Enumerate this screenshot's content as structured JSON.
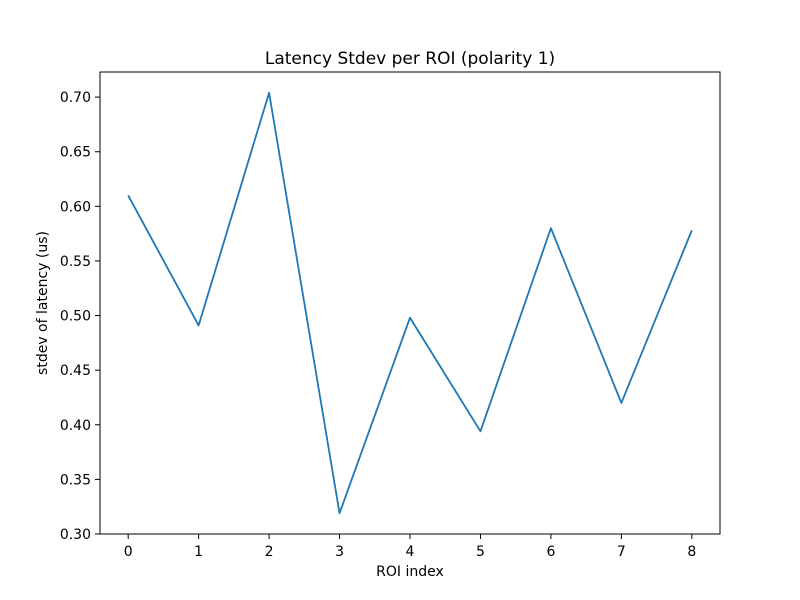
{
  "chart_data": {
    "type": "line",
    "title": "Latency Stdev per ROI (polarity 1)",
    "xlabel": "ROI index",
    "ylabel": "stdev of latency (us)",
    "x": [
      0,
      1,
      2,
      3,
      4,
      5,
      6,
      7,
      8
    ],
    "series": [
      {
        "name": "stdev",
        "values": [
          0.61,
          0.491,
          0.704,
          0.319,
          0.498,
          0.394,
          0.58,
          0.42,
          0.578
        ]
      }
    ],
    "xlim": [
      -0.4,
      8.4
    ],
    "ylim": [
      0.3,
      0.723
    ],
    "xticks": [
      0,
      1,
      2,
      3,
      4,
      5,
      6,
      7,
      8
    ],
    "xtick_labels": [
      "0",
      "1",
      "2",
      "3",
      "4",
      "5",
      "6",
      "7",
      "8"
    ],
    "yticks": [
      0.3,
      0.35,
      0.4,
      0.45,
      0.5,
      0.55,
      0.6,
      0.65,
      0.7
    ],
    "ytick_labels": [
      "0.30",
      "0.35",
      "0.40",
      "0.45",
      "0.50",
      "0.55",
      "0.60",
      "0.65",
      "0.70"
    ],
    "grid": false,
    "line_color": "#1f77b4"
  }
}
